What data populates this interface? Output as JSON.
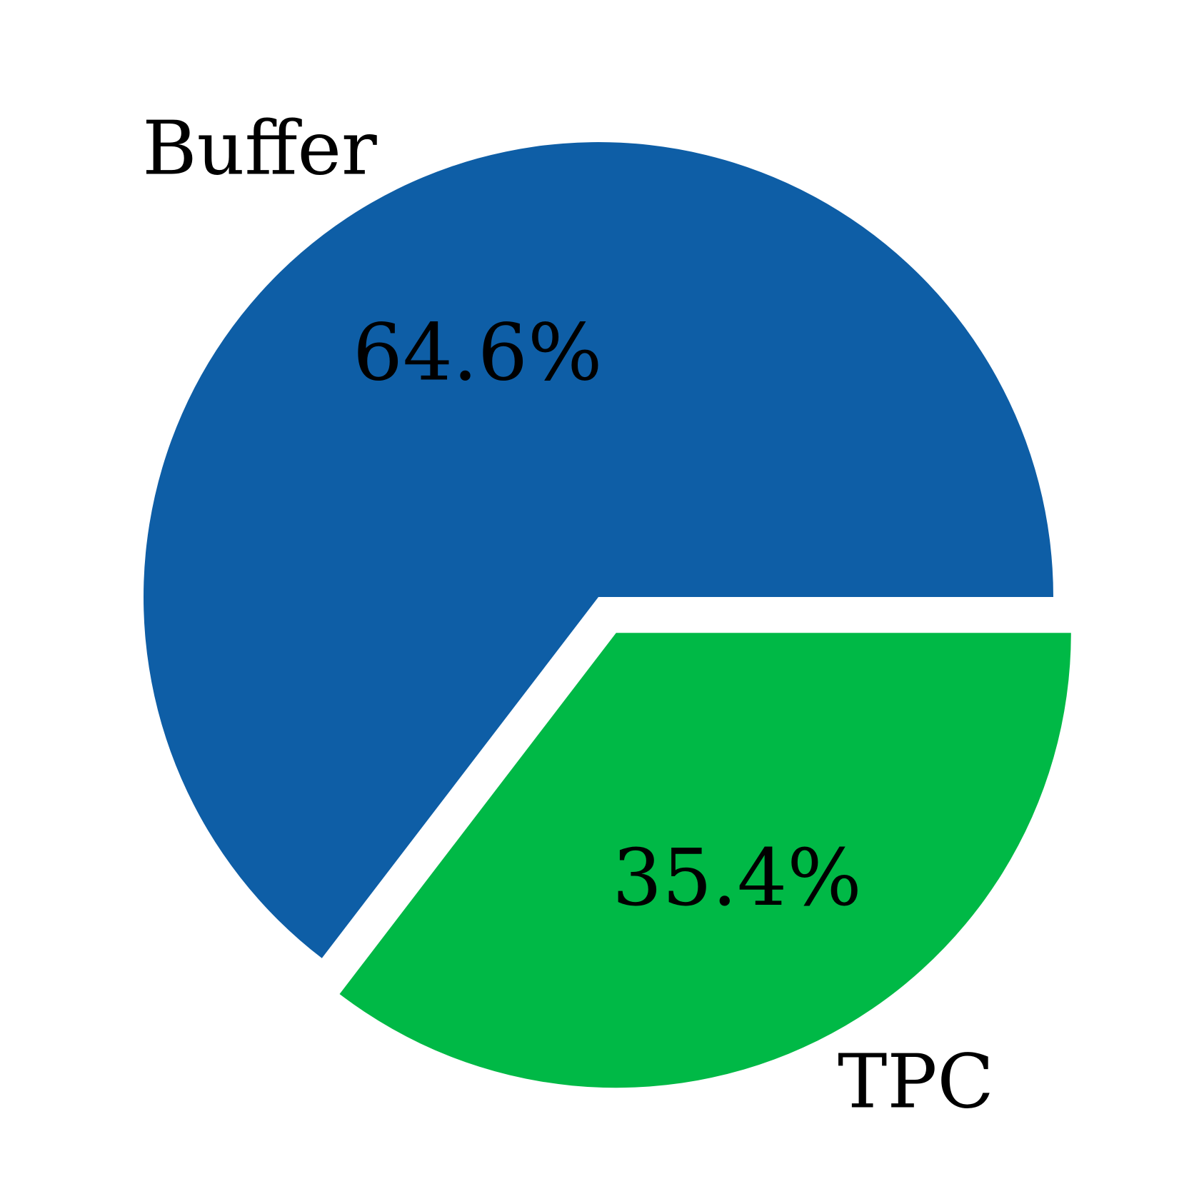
{
  "chart_data": {
    "type": "pie",
    "categories": [
      "Buffer",
      "TPC"
    ],
    "values": [
      64.6,
      35.4
    ],
    "value_labels": [
      "64.6%",
      "35.4%"
    ],
    "colors": [
      "#0e5ea6",
      "#00b946"
    ],
    "exploded": [
      false,
      true
    ],
    "start_angle_deg": 0,
    "direction": "counterclockwise",
    "legend": "none"
  }
}
